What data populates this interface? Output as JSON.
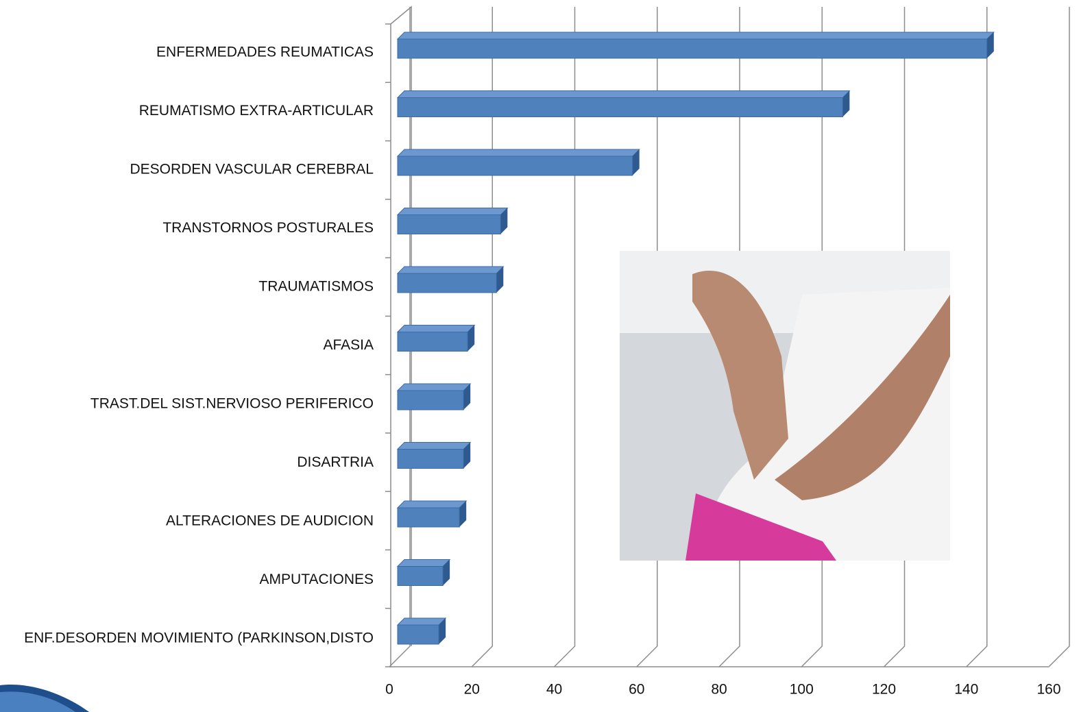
{
  "chart_data": {
    "type": "bar",
    "orientation": "horizontal",
    "categories": [
      "ENFERMEDADES REUMATICAS",
      "REUMATISMO EXTRA-ARTICULAR",
      "DESORDEN VASCULAR CEREBRAL",
      "TRANSTORNOS POSTURALES",
      "TRAUMATISMOS",
      "AFASIA",
      "TRAST.DEL SIST.NERVIOSO PERIFERICO",
      "DISARTRIA",
      "ALTERACIONES DE AUDICION",
      "AMPUTACIONES",
      "ENF.DESORDEN MOVIMIENTO (PARKINSON,DISTO"
    ],
    "values": [
      143,
      108,
      57,
      25,
      24,
      17,
      16,
      16,
      15,
      11,
      10
    ],
    "color": "#4f81bd",
    "xlim": [
      0,
      160
    ],
    "xticks": [
      0,
      20,
      40,
      60,
      80,
      100,
      120,
      140,
      160
    ],
    "grid": true
  }
}
